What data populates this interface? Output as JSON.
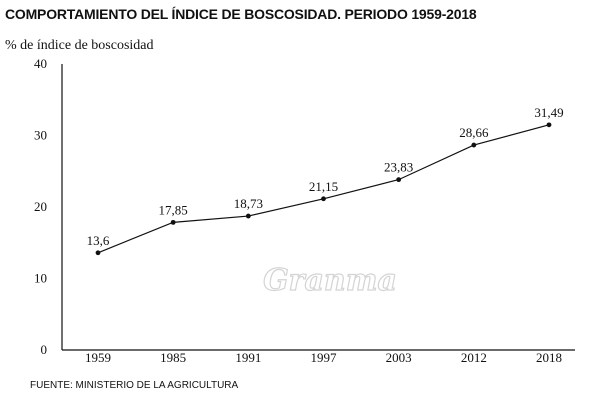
{
  "chart_data": {
    "type": "line",
    "title": "COMPORTAMIENTO DEL ÍNDICE DE BOSCOSIDAD. PERIODO 1959-2018",
    "ylabel": "% de índice de boscosidad",
    "xlabel": "",
    "categories": [
      "1959",
      "1985",
      "1991",
      "1997",
      "2003",
      "2012",
      "2018"
    ],
    "values": [
      13.6,
      17.85,
      18.73,
      21.15,
      23.83,
      28.66,
      31.49
    ],
    "value_labels": [
      "13,6",
      "17,85",
      "18,73",
      "21,15",
      "23,83",
      "28,66",
      "31,49"
    ],
    "ylim": [
      0,
      40
    ],
    "yticks": [
      0,
      10,
      20,
      30,
      40
    ],
    "grid": false,
    "line_color": "#111111",
    "source": "FUENTE: MINISTERIO DE LA AGRICULTURA",
    "watermark": "Granma"
  }
}
